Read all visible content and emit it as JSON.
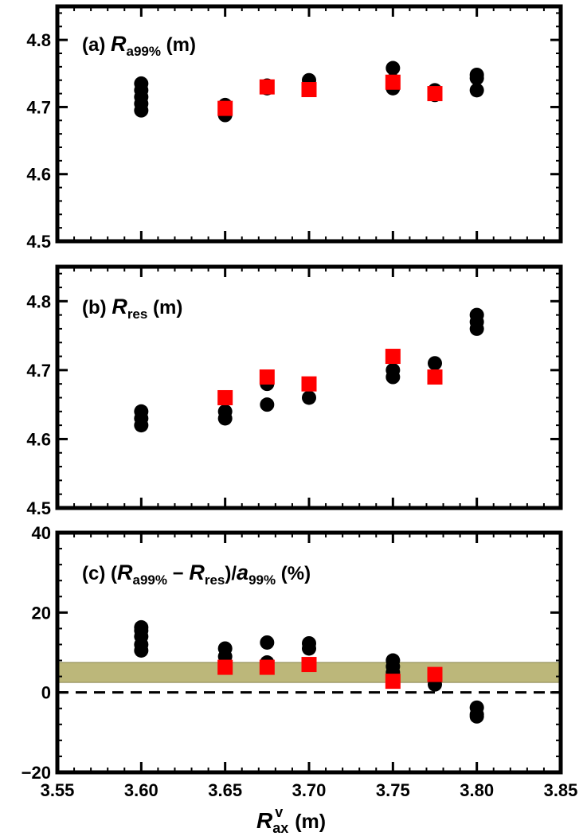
{
  "chart_data": [
    {
      "type": "scatter",
      "panel": "(a)",
      "label_parts": [
        "(a) ",
        "R",
        "a99%",
        " (m)"
      ],
      "xlim": [
        3.55,
        3.85
      ],
      "ylim": [
        4.5,
        4.85
      ],
      "yticks": [
        "4.5",
        "4.6",
        "4.7",
        "4.8"
      ],
      "series": [
        {
          "marker": "circle",
          "color": "#000000",
          "points": [
            [
              3.6,
              4.695
            ],
            [
              3.6,
              4.705
            ],
            [
              3.6,
              4.715
            ],
            [
              3.6,
              4.725
            ],
            [
              3.6,
              4.735
            ],
            [
              3.65,
              4.688
            ],
            [
              3.65,
              4.695
            ],
            [
              3.65,
              4.703
            ],
            [
              3.675,
              4.728
            ],
            [
              3.675,
              4.732
            ],
            [
              3.7,
              4.73
            ],
            [
              3.7,
              4.74
            ],
            [
              3.75,
              4.728
            ],
            [
              3.75,
              4.74
            ],
            [
              3.75,
              4.758
            ],
            [
              3.775,
              4.718
            ],
            [
              3.775,
              4.725
            ],
            [
              3.8,
              4.725
            ],
            [
              3.8,
              4.743
            ],
            [
              3.8,
              4.748
            ]
          ]
        },
        {
          "marker": "square",
          "color": "#ff0000",
          "points": [
            [
              3.65,
              4.698
            ],
            [
              3.675,
              4.73
            ],
            [
              3.7,
              4.726
            ],
            [
              3.75,
              4.737
            ],
            [
              3.775,
              4.72
            ]
          ]
        }
      ]
    },
    {
      "type": "scatter",
      "panel": "(b)",
      "label_parts": [
        "(b) ",
        "R",
        "res",
        " (m)"
      ],
      "xlim": [
        3.55,
        3.85
      ],
      "ylim": [
        4.5,
        4.85
      ],
      "yticks": [
        "4.5",
        "4.6",
        "4.7",
        "4.8"
      ],
      "series": [
        {
          "marker": "circle",
          "color": "#000000",
          "points": [
            [
              3.6,
              4.62
            ],
            [
              3.6,
              4.63
            ],
            [
              3.6,
              4.64
            ],
            [
              3.65,
              4.63
            ],
            [
              3.65,
              4.64
            ],
            [
              3.675,
              4.65
            ],
            [
              3.675,
              4.68
            ],
            [
              3.7,
              4.66
            ],
            [
              3.75,
              4.69
            ],
            [
              3.75,
              4.7
            ],
            [
              3.775,
              4.71
            ],
            [
              3.8,
              4.76
            ],
            [
              3.8,
              4.77
            ],
            [
              3.8,
              4.78
            ]
          ]
        },
        {
          "marker": "square",
          "color": "#ff0000",
          "points": [
            [
              3.65,
              4.66
            ],
            [
              3.675,
              4.69
            ],
            [
              3.7,
              4.68
            ],
            [
              3.75,
              4.72
            ],
            [
              3.775,
              4.69
            ]
          ]
        }
      ]
    },
    {
      "type": "scatter",
      "panel": "(c)",
      "label_parts": [
        "(c) (",
        "R",
        "a99%",
        " − ",
        "R",
        "res",
        ")/",
        "a",
        "99%",
        " (%)"
      ],
      "xlim": [
        3.55,
        3.85
      ],
      "ylim": [
        -20,
        40
      ],
      "yticks": [
        "−20",
        "0",
        "20",
        "40"
      ],
      "xticks": [
        "3.55",
        "3.60",
        "3.65",
        "3.70",
        "3.75",
        "3.80",
        "3.85"
      ],
      "xlabel_parts": [
        "R",
        "ax",
        "v",
        " (m)"
      ],
      "band": {
        "ymin": 2.5,
        "ymax": 7.5,
        "color": "#bcb77a"
      },
      "hline": {
        "y": 0,
        "style": "dashed"
      },
      "series": [
        {
          "marker": "circle",
          "color": "#000000",
          "points": [
            [
              3.6,
              10.5
            ],
            [
              3.6,
              12
            ],
            [
              3.6,
              14
            ],
            [
              3.6,
              15.5
            ],
            [
              3.6,
              16.3
            ],
            [
              3.65,
              7
            ],
            [
              3.65,
              9
            ],
            [
              3.65,
              11
            ],
            [
              3.675,
              7.5
            ],
            [
              3.675,
              12.5
            ],
            [
              3.7,
              11
            ],
            [
              3.7,
              12.3
            ],
            [
              3.75,
              5
            ],
            [
              3.75,
              6.5
            ],
            [
              3.75,
              8
            ],
            [
              3.775,
              2
            ],
            [
              3.775,
              3.5
            ],
            [
              3.8,
              -3.8
            ],
            [
              3.8,
              -5.5
            ],
            [
              3.8,
              -6
            ]
          ]
        },
        {
          "marker": "square",
          "color": "#ff0000",
          "points": [
            [
              3.65,
              6.3
            ],
            [
              3.675,
              6.3
            ],
            [
              3.7,
              7
            ],
            [
              3.75,
              2.8
            ],
            [
              3.775,
              4.5
            ]
          ]
        }
      ]
    }
  ]
}
